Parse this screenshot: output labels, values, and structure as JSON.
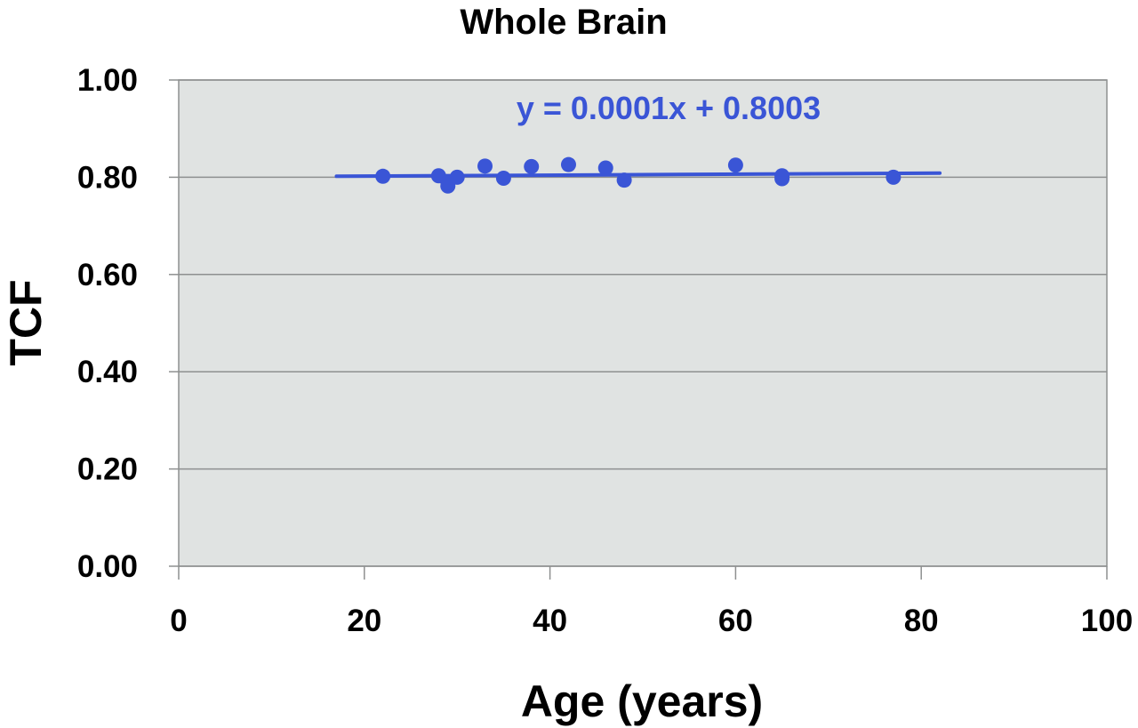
{
  "chart_data": {
    "type": "scatter",
    "title": "Whole Brain",
    "xlabel": "Age (years)",
    "ylabel": "TCF",
    "xlim": [
      0,
      100
    ],
    "ylim": [
      0.0,
      1.0
    ],
    "x_ticks": [
      "0",
      "20",
      "40",
      "60",
      "80",
      "100"
    ],
    "y_ticks": [
      "0.00",
      "0.20",
      "0.40",
      "0.60",
      "0.80",
      "1.00"
    ],
    "grid": true,
    "series": [
      {
        "points": [
          {
            "x": 22,
            "y": 0.802
          },
          {
            "x": 28,
            "y": 0.803
          },
          {
            "x": 29,
            "y": 0.782
          },
          {
            "x": 29,
            "y": 0.79
          },
          {
            "x": 30,
            "y": 0.8
          },
          {
            "x": 33,
            "y": 0.823
          },
          {
            "x": 35,
            "y": 0.798
          },
          {
            "x": 38,
            "y": 0.822
          },
          {
            "x": 42,
            "y": 0.826
          },
          {
            "x": 46,
            "y": 0.819
          },
          {
            "x": 48,
            "y": 0.794
          },
          {
            "x": 60,
            "y": 0.825
          },
          {
            "x": 65,
            "y": 0.797
          },
          {
            "x": 65,
            "y": 0.803
          },
          {
            "x": 77,
            "y": 0.8
          }
        ]
      }
    ],
    "trendline": {
      "equation": "y = 0.0001x + 0.8003",
      "x_range": [
        17,
        82
      ],
      "slope": 0.0001,
      "intercept": 0.8003
    },
    "colors": {
      "series": "#3a55d6",
      "plot_background": "#e0e3e2",
      "gridline": "#8e9090"
    }
  }
}
